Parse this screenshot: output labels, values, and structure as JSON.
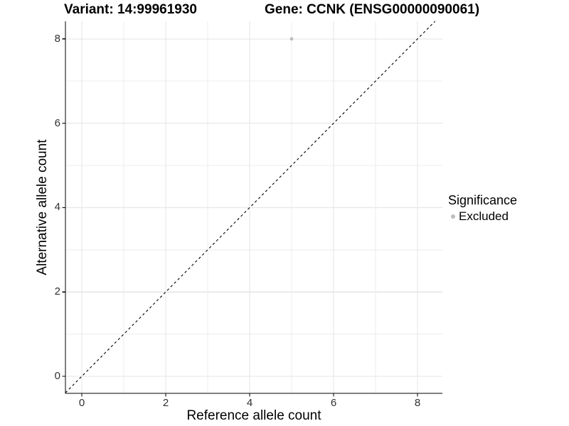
{
  "figure": {
    "title_variant": "Variant: 14:99961930",
    "title_gene": "Gene: CCNK (ENSG00000090061)"
  },
  "chart_data": {
    "type": "scatter",
    "title": "Variant: 14:99961930   Gene: CCNK (ENSG00000090061)",
    "xlabel": "Reference allele count",
    "ylabel": "Alternative allele count",
    "xlim": [
      -0.4,
      8.6
    ],
    "ylim": [
      -0.4,
      8.45
    ],
    "x_ticks": [
      0,
      2,
      4,
      6,
      8
    ],
    "y_ticks": [
      0,
      2,
      4,
      6,
      8
    ],
    "grid": {
      "show": true,
      "interval": 1,
      "major_every": 2
    },
    "series": [
      {
        "name": "Excluded",
        "marker": "circle",
        "color": "#bdbdbd",
        "points": [
          {
            "x": 5,
            "y": 8
          }
        ]
      }
    ],
    "reference_line": {
      "kind": "identity y=x",
      "style": "dashed",
      "color": "#000000"
    },
    "legend": {
      "title": "Significance",
      "position": "right",
      "items": [
        {
          "label": "Excluded",
          "color": "#bdbdbd",
          "marker": "circle"
        }
      ]
    }
  },
  "style_colors": {
    "background": "#ffffff",
    "axis_line": "#000000",
    "tick_text": "#303030",
    "grid_major": "#e4e4e4",
    "grid_minor": "#ededed",
    "point": "#bdbdbd"
  }
}
